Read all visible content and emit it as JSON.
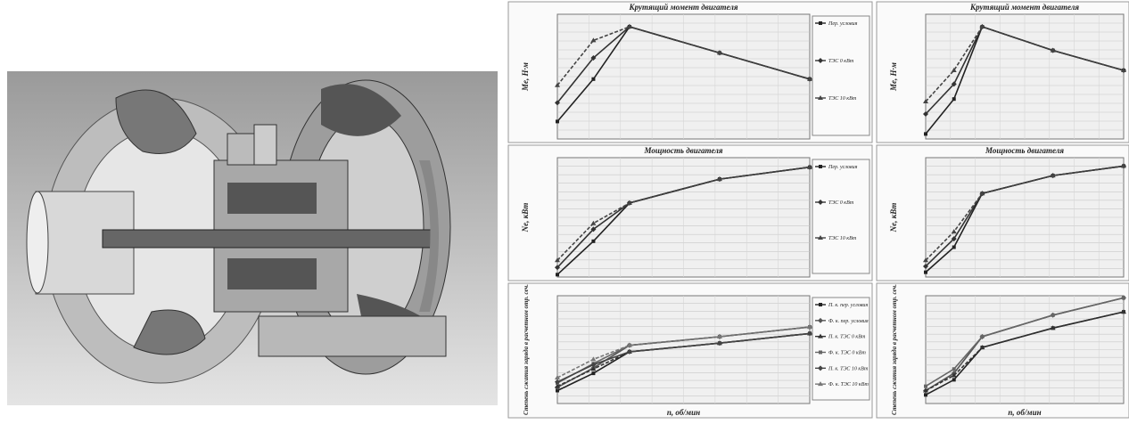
{
  "chart_data": [
    {
      "type": "line",
      "title": "Крутящий момент двигателя",
      "y_label": "Me, Н·м",
      "x": [
        1000,
        1200,
        1400,
        1900,
        2400
      ],
      "xlim": [
        1000,
        2400
      ],
      "ylim": [
        0,
        100
      ],
      "grid": true,
      "series": [
        {
          "name": "Пер. условия",
          "color": "#222",
          "values": [
            14,
            48,
            90,
            69,
            48
          ]
        },
        {
          "name": "ТЭС 0 кВт",
          "color": "#333",
          "values": [
            29,
            65,
            90,
            69,
            48
          ]
        },
        {
          "name": "ТЭС 10 кВт",
          "color": "#444",
          "values": [
            43,
            79,
            90,
            69,
            48
          ]
        }
      ]
    },
    {
      "type": "line",
      "title": "Крутящий момент двигателя",
      "y_label": "Me, Н·м",
      "x": [
        1000,
        1200,
        1400,
        1900,
        2400
      ],
      "xlim": [
        1000,
        2400
      ],
      "ylim": [
        0,
        100
      ],
      "grid": true,
      "series": [
        {
          "color": "#222",
          "values": [
            4,
            32,
            90,
            71,
            55
          ]
        },
        {
          "color": "#333",
          "values": [
            20,
            44,
            90,
            71,
            55
          ]
        },
        {
          "color": "#444",
          "values": [
            30,
            55,
            90,
            71,
            55
          ]
        }
      ]
    },
    {
      "type": "line",
      "title": "Мощность двигателя",
      "y_label": "Ne, кВт",
      "x": [
        1000,
        1200,
        1400,
        1900,
        2400
      ],
      "xlim": [
        1000,
        2400
      ],
      "ylim": [
        0,
        100
      ],
      "grid": true,
      "series": [
        {
          "name": "Пер. условия",
          "color": "#222",
          "values": [
            2,
            30,
            62,
            82,
            92
          ]
        },
        {
          "name": "ТЭС 0 кВт",
          "color": "#333",
          "values": [
            8,
            40,
            62,
            82,
            92
          ]
        },
        {
          "name": "ТЭС 10 кВт",
          "color": "#444",
          "values": [
            14,
            45,
            62,
            82,
            92
          ]
        }
      ]
    },
    {
      "type": "line",
      "title": "Мощность двигателя",
      "y_label": "Ne, кВт",
      "x": [
        1000,
        1200,
        1400,
        1900,
        2400
      ],
      "xlim": [
        1000,
        2400
      ],
      "ylim": [
        0,
        100
      ],
      "grid": true,
      "series": [
        {
          "color": "#222",
          "values": [
            4,
            25,
            70,
            85,
            93
          ]
        },
        {
          "color": "#333",
          "values": [
            9,
            32,
            70,
            85,
            93
          ]
        },
        {
          "color": "#444",
          "values": [
            14,
            38,
            70,
            85,
            93
          ]
        }
      ]
    },
    {
      "type": "line",
      "y_label": "Степень сжатия заряда в расчетном отр. сеч.",
      "x_label": "n, об/мин",
      "x": [
        1000,
        1200,
        1400,
        1900,
        2400
      ],
      "xlim": [
        1000,
        2400
      ],
      "ylim": [
        0,
        100
      ],
      "grid": true,
      "series": [
        {
          "name": "П. к. пер. условия",
          "color": "#222",
          "values": [
            12,
            28,
            48,
            56,
            65
          ]
        },
        {
          "name": "Ф. к. пер. условия",
          "color": "#555",
          "values": [
            15,
            33,
            54,
            62,
            71
          ]
        },
        {
          "name": "П. к. ТЭС 0 кВт",
          "color": "#333",
          "values": [
            16,
            32,
            48,
            56,
            65
          ]
        },
        {
          "name": "Ф. к. ТЭС 0 кВт",
          "color": "#666",
          "values": [
            19,
            37,
            54,
            62,
            71
          ]
        },
        {
          "name": "П. к. ТЭС 10 кВт",
          "color": "#444",
          "values": [
            20,
            36,
            48,
            56,
            65
          ]
        },
        {
          "name": "Ф. к. ТЭС 10 кВт",
          "color": "#777",
          "values": [
            24,
            41,
            54,
            62,
            71
          ]
        }
      ]
    },
    {
      "type": "line",
      "y_label": "Степень сжатия заряда в расчетном отр. сеч.",
      "x_label": "n, об/мин",
      "x": [
        1000,
        1200,
        1400,
        1900,
        2400
      ],
      "xlim": [
        1000,
        2400
      ],
      "ylim": [
        0,
        100
      ],
      "grid": true,
      "series": [
        {
          "color": "#222",
          "values": [
            8,
            22,
            52,
            70,
            85
          ]
        },
        {
          "color": "#555",
          "values": [
            12,
            28,
            62,
            82,
            98
          ]
        },
        {
          "color": "#333",
          "values": [
            12,
            26,
            52,
            70,
            85
          ]
        },
        {
          "color": "#666",
          "values": [
            16,
            32,
            62,
            82,
            98
          ]
        }
      ]
    }
  ]
}
